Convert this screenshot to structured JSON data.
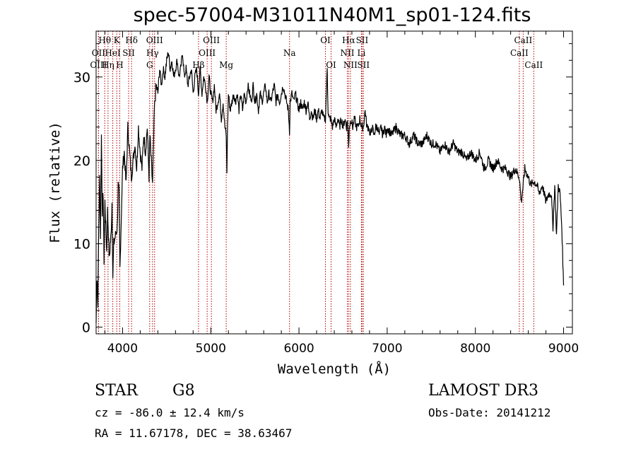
{
  "chart_data": {
    "type": "line",
    "title": "spec-57004-M31011N40M1_sp01-124.fits",
    "xlabel": "Wavelength (Å)",
    "ylabel": "Flux (relative)",
    "xlim": [
      3700,
      9100
    ],
    "ylim": [
      -0.8,
      35.5
    ],
    "x_ticks": [
      4000,
      5000,
      6000,
      7000,
      8000,
      9000
    ],
    "y_ticks": [
      0,
      10,
      20,
      30
    ],
    "grid": false,
    "series": [
      {
        "color": "#000000",
        "points": [
          [
            3700,
            0.5
          ],
          [
            3710,
            6
          ],
          [
            3720,
            3
          ],
          [
            3730,
            12
          ],
          [
            3740,
            18
          ],
          [
            3750,
            11
          ],
          [
            3760,
            23
          ],
          [
            3770,
            14
          ],
          [
            3780,
            16
          ],
          [
            3790,
            8
          ],
          [
            3800,
            15
          ],
          [
            3810,
            12
          ],
          [
            3820,
            9
          ],
          [
            3830,
            14
          ],
          [
            3840,
            11
          ],
          [
            3850,
            8
          ],
          [
            3860,
            10
          ],
          [
            3870,
            11
          ],
          [
            3880,
            15
          ],
          [
            3890,
            6
          ],
          [
            3900,
            10
          ],
          [
            3920,
            11
          ],
          [
            3940,
            12
          ],
          [
            3950,
            17
          ],
          [
            3960,
            16
          ],
          [
            3970,
            7
          ],
          [
            3985,
            13
          ],
          [
            4000,
            19
          ],
          [
            4020,
            21
          ],
          [
            4040,
            17
          ],
          [
            4060,
            24
          ],
          [
            4080,
            21
          ],
          [
            4100,
            18
          ],
          [
            4120,
            20
          ],
          [
            4140,
            22
          ],
          [
            4160,
            19
          ],
          [
            4180,
            24
          ],
          [
            4200,
            21
          ],
          [
            4220,
            19
          ],
          [
            4240,
            23
          ],
          [
            4260,
            21
          ],
          [
            4280,
            24
          ],
          [
            4300,
            18
          ],
          [
            4310,
            23
          ],
          [
            4330,
            19
          ],
          [
            4340,
            17
          ],
          [
            4360,
            26
          ],
          [
            4380,
            29
          ],
          [
            4400,
            28
          ],
          [
            4420,
            31
          ],
          [
            4440,
            29
          ],
          [
            4460,
            31
          ],
          [
            4480,
            30
          ],
          [
            4500,
            32
          ],
          [
            4520,
            33
          ],
          [
            4540,
            31
          ],
          [
            4560,
            32
          ],
          [
            4580,
            30
          ],
          [
            4600,
            31
          ],
          [
            4620,
            32
          ],
          [
            4640,
            30
          ],
          [
            4660,
            31
          ],
          [
            4680,
            33
          ],
          [
            4700,
            30
          ],
          [
            4720,
            31
          ],
          [
            4740,
            29
          ],
          [
            4760,
            30
          ],
          [
            4780,
            31
          ],
          [
            4800,
            28
          ],
          [
            4820,
            30
          ],
          [
            4840,
            31
          ],
          [
            4860,
            28
          ],
          [
            4880,
            31
          ],
          [
            4900,
            28
          ],
          [
            4920,
            30
          ],
          [
            4940,
            29
          ],
          [
            4960,
            27
          ],
          [
            4980,
            30
          ],
          [
            5000,
            28
          ],
          [
            5020,
            27
          ],
          [
            5040,
            29
          ],
          [
            5060,
            26
          ],
          [
            5080,
            27
          ],
          [
            5100,
            28
          ],
          [
            5120,
            25
          ],
          [
            5140,
            27
          ],
          [
            5160,
            24
          ],
          [
            5175,
            23
          ],
          [
            5183,
            18.5
          ],
          [
            5190,
            24
          ],
          [
            5200,
            28
          ],
          [
            5220,
            26
          ],
          [
            5240,
            27
          ],
          [
            5260,
            28
          ],
          [
            5280,
            27
          ],
          [
            5300,
            28
          ],
          [
            5320,
            26
          ],
          [
            5340,
            28
          ],
          [
            5360,
            26
          ],
          [
            5380,
            28
          ],
          [
            5400,
            27
          ],
          [
            5420,
            29
          ],
          [
            5440,
            28
          ],
          [
            5460,
            27
          ],
          [
            5480,
            29
          ],
          [
            5500,
            27
          ],
          [
            5520,
            28
          ],
          [
            5540,
            26
          ],
          [
            5560,
            28
          ],
          [
            5580,
            27
          ],
          [
            5600,
            28
          ],
          [
            5620,
            29
          ],
          [
            5640,
            27
          ],
          [
            5660,
            28
          ],
          [
            5680,
            27
          ],
          [
            5700,
            28
          ],
          [
            5720,
            29
          ],
          [
            5740,
            27
          ],
          [
            5760,
            28
          ],
          [
            5780,
            27
          ],
          [
            5800,
            28
          ],
          [
            5820,
            29
          ],
          [
            5840,
            28
          ],
          [
            5860,
            27
          ],
          [
            5880,
            26
          ],
          [
            5893,
            23.5
          ],
          [
            5900,
            27
          ],
          [
            5920,
            28
          ],
          [
            5940,
            27
          ],
          [
            5960,
            28
          ],
          [
            5980,
            27
          ],
          [
            6000,
            26
          ],
          [
            6020,
            27
          ],
          [
            6040,
            26
          ],
          [
            6060,
            27
          ],
          [
            6080,
            26
          ],
          [
            6100,
            27
          ],
          [
            6120,
            25
          ],
          [
            6140,
            26
          ],
          [
            6160,
            25
          ],
          [
            6180,
            26
          ],
          [
            6200,
            25
          ],
          [
            6220,
            26
          ],
          [
            6240,
            25
          ],
          [
            6260,
            26
          ],
          [
            6280,
            25
          ],
          [
            6300,
            25
          ],
          [
            6320,
            31
          ],
          [
            6330,
            26
          ],
          [
            6340,
            25
          ],
          [
            6360,
            25
          ],
          [
            6380,
            24
          ],
          [
            6400,
            25
          ],
          [
            6420,
            24
          ],
          [
            6440,
            25
          ],
          [
            6460,
            24
          ],
          [
            6480,
            25
          ],
          [
            6500,
            24
          ],
          [
            6520,
            25
          ],
          [
            6540,
            24
          ],
          [
            6550,
            25
          ],
          [
            6563,
            21.5
          ],
          [
            6570,
            24
          ],
          [
            6590,
            25
          ],
          [
            6610,
            24
          ],
          [
            6630,
            25
          ],
          [
            6650,
            24
          ],
          [
            6670,
            24
          ],
          [
            6690,
            25
          ],
          [
            6710,
            24
          ],
          [
            6730,
            24
          ],
          [
            6750,
            26
          ],
          [
            6770,
            24
          ],
          [
            6790,
            24
          ],
          [
            6810,
            23
          ],
          [
            6830,
            24
          ],
          [
            6850,
            23
          ],
          [
            6870,
            24
          ],
          [
            6890,
            24
          ],
          [
            6910,
            23
          ],
          [
            6930,
            24
          ],
          [
            6950,
            23
          ],
          [
            6970,
            24
          ],
          [
            6990,
            23
          ],
          [
            7000,
            24
          ],
          [
            7050,
            23
          ],
          [
            7100,
            24
          ],
          [
            7150,
            23
          ],
          [
            7200,
            23
          ],
          [
            7250,
            22
          ],
          [
            7300,
            23
          ],
          [
            7350,
            22
          ],
          [
            7400,
            22
          ],
          [
            7450,
            23
          ],
          [
            7500,
            22
          ],
          [
            7550,
            22
          ],
          [
            7600,
            21
          ],
          [
            7650,
            22
          ],
          [
            7700,
            21
          ],
          [
            7750,
            22
          ],
          [
            7800,
            21
          ],
          [
            7850,
            21
          ],
          [
            7900,
            20
          ],
          [
            7950,
            21
          ],
          [
            8000,
            20
          ],
          [
            8050,
            21
          ],
          [
            8100,
            19
          ],
          [
            8150,
            20
          ],
          [
            8200,
            19
          ],
          [
            8250,
            20
          ],
          [
            8300,
            19
          ],
          [
            8350,
            19
          ],
          [
            8400,
            18
          ],
          [
            8450,
            19
          ],
          [
            8498,
            18
          ],
          [
            8520,
            15
          ],
          [
            8542,
            17
          ],
          [
            8560,
            19
          ],
          [
            8600,
            18
          ],
          [
            8630,
            17
          ],
          [
            8662,
            17.5
          ],
          [
            8700,
            17
          ],
          [
            8720,
            16
          ],
          [
            8760,
            17
          ],
          [
            8800,
            15
          ],
          [
            8830,
            16
          ],
          [
            8860,
            16
          ],
          [
            8880,
            12
          ],
          [
            8900,
            17
          ],
          [
            8920,
            11
          ],
          [
            8940,
            17
          ],
          [
            8960,
            16
          ],
          [
            8980,
            12
          ],
          [
            9000,
            5
          ]
        ]
      }
    ],
    "lines": [
      {
        "label": "Hθ",
        "x": 3798,
        "row": 0
      },
      {
        "label": "OII",
        "x": 3727,
        "row": 1
      },
      {
        "label": "OIII",
        "x": 3727,
        "row": 2
      },
      {
        "label": "K",
        "x": 3934,
        "row": 0
      },
      {
        "label": "Hη",
        "x": 3835,
        "row": 2
      },
      {
        "label": "HeI",
        "x": 3889,
        "row": 1
      },
      {
        "label": "SII",
        "x": 4069,
        "row": 1
      },
      {
        "label": "H",
        "x": 3968,
        "row": 2
      },
      {
        "label": "Hδ",
        "x": 4102,
        "row": 0
      },
      {
        "label": "OIII",
        "x": 4363,
        "row": 0
      },
      {
        "label": "Hγ",
        "x": 4340,
        "row": 1
      },
      {
        "label": "G",
        "x": 4307,
        "row": 2
      },
      {
        "label": "Hβ",
        "x": 4861,
        "row": 2
      },
      {
        "label": "OIII",
        "x": 5007,
        "row": 0
      },
      {
        "label": "OIII",
        "x": 4959,
        "row": 1
      },
      {
        "label": "Mg",
        "x": 5175,
        "row": 2
      },
      {
        "label": "Na",
        "x": 5893,
        "row": 1
      },
      {
        "label": "OI",
        "x": 6300,
        "row": 0
      },
      {
        "label": "OI",
        "x": 6364,
        "row": 2
      },
      {
        "label": "Hα",
        "x": 6563,
        "row": 0
      },
      {
        "label": "NII",
        "x": 6548,
        "row": 1
      },
      {
        "label": "NII",
        "x": 6583,
        "row": 2
      },
      {
        "label": "SII",
        "x": 6716,
        "row": 0
      },
      {
        "label": "Li",
        "x": 6708,
        "row": 1
      },
      {
        "label": "SII",
        "x": 6731,
        "row": 2
      },
      {
        "label": "CaII",
        "x": 8542,
        "row": 0
      },
      {
        "label": "CaII",
        "x": 8498,
        "row": 1
      },
      {
        "label": "CaII",
        "x": 8662,
        "row": 2
      }
    ]
  },
  "info": {
    "class": "STAR",
    "subclass": "G8",
    "survey": "LAMOST DR3",
    "cz": "cz = -86.0 ± 12.4 km/s",
    "obs_date": "Obs-Date: 20141212",
    "radec": "RA =  11.67178, DEC =  38.63467"
  }
}
